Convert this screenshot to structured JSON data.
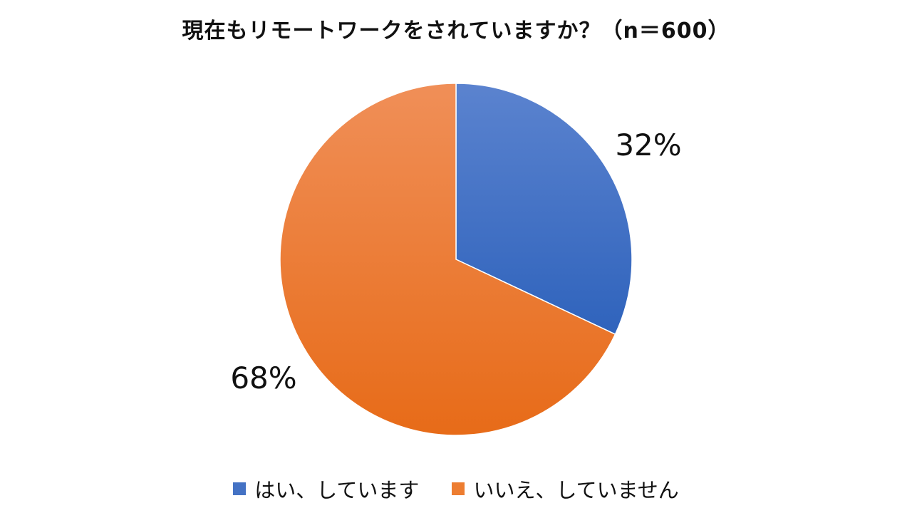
{
  "chart_data": {
    "type": "pie",
    "title": "現在もリモートワークをされていますか？（n＝600）",
    "categories": [
      "はい、しています",
      "いいえ、していません"
    ],
    "values": [
      32,
      68
    ],
    "data_labels": [
      "32%",
      "68%"
    ],
    "colors": [
      "#4472C4",
      "#ED7D31"
    ],
    "legend_position": "bottom"
  }
}
